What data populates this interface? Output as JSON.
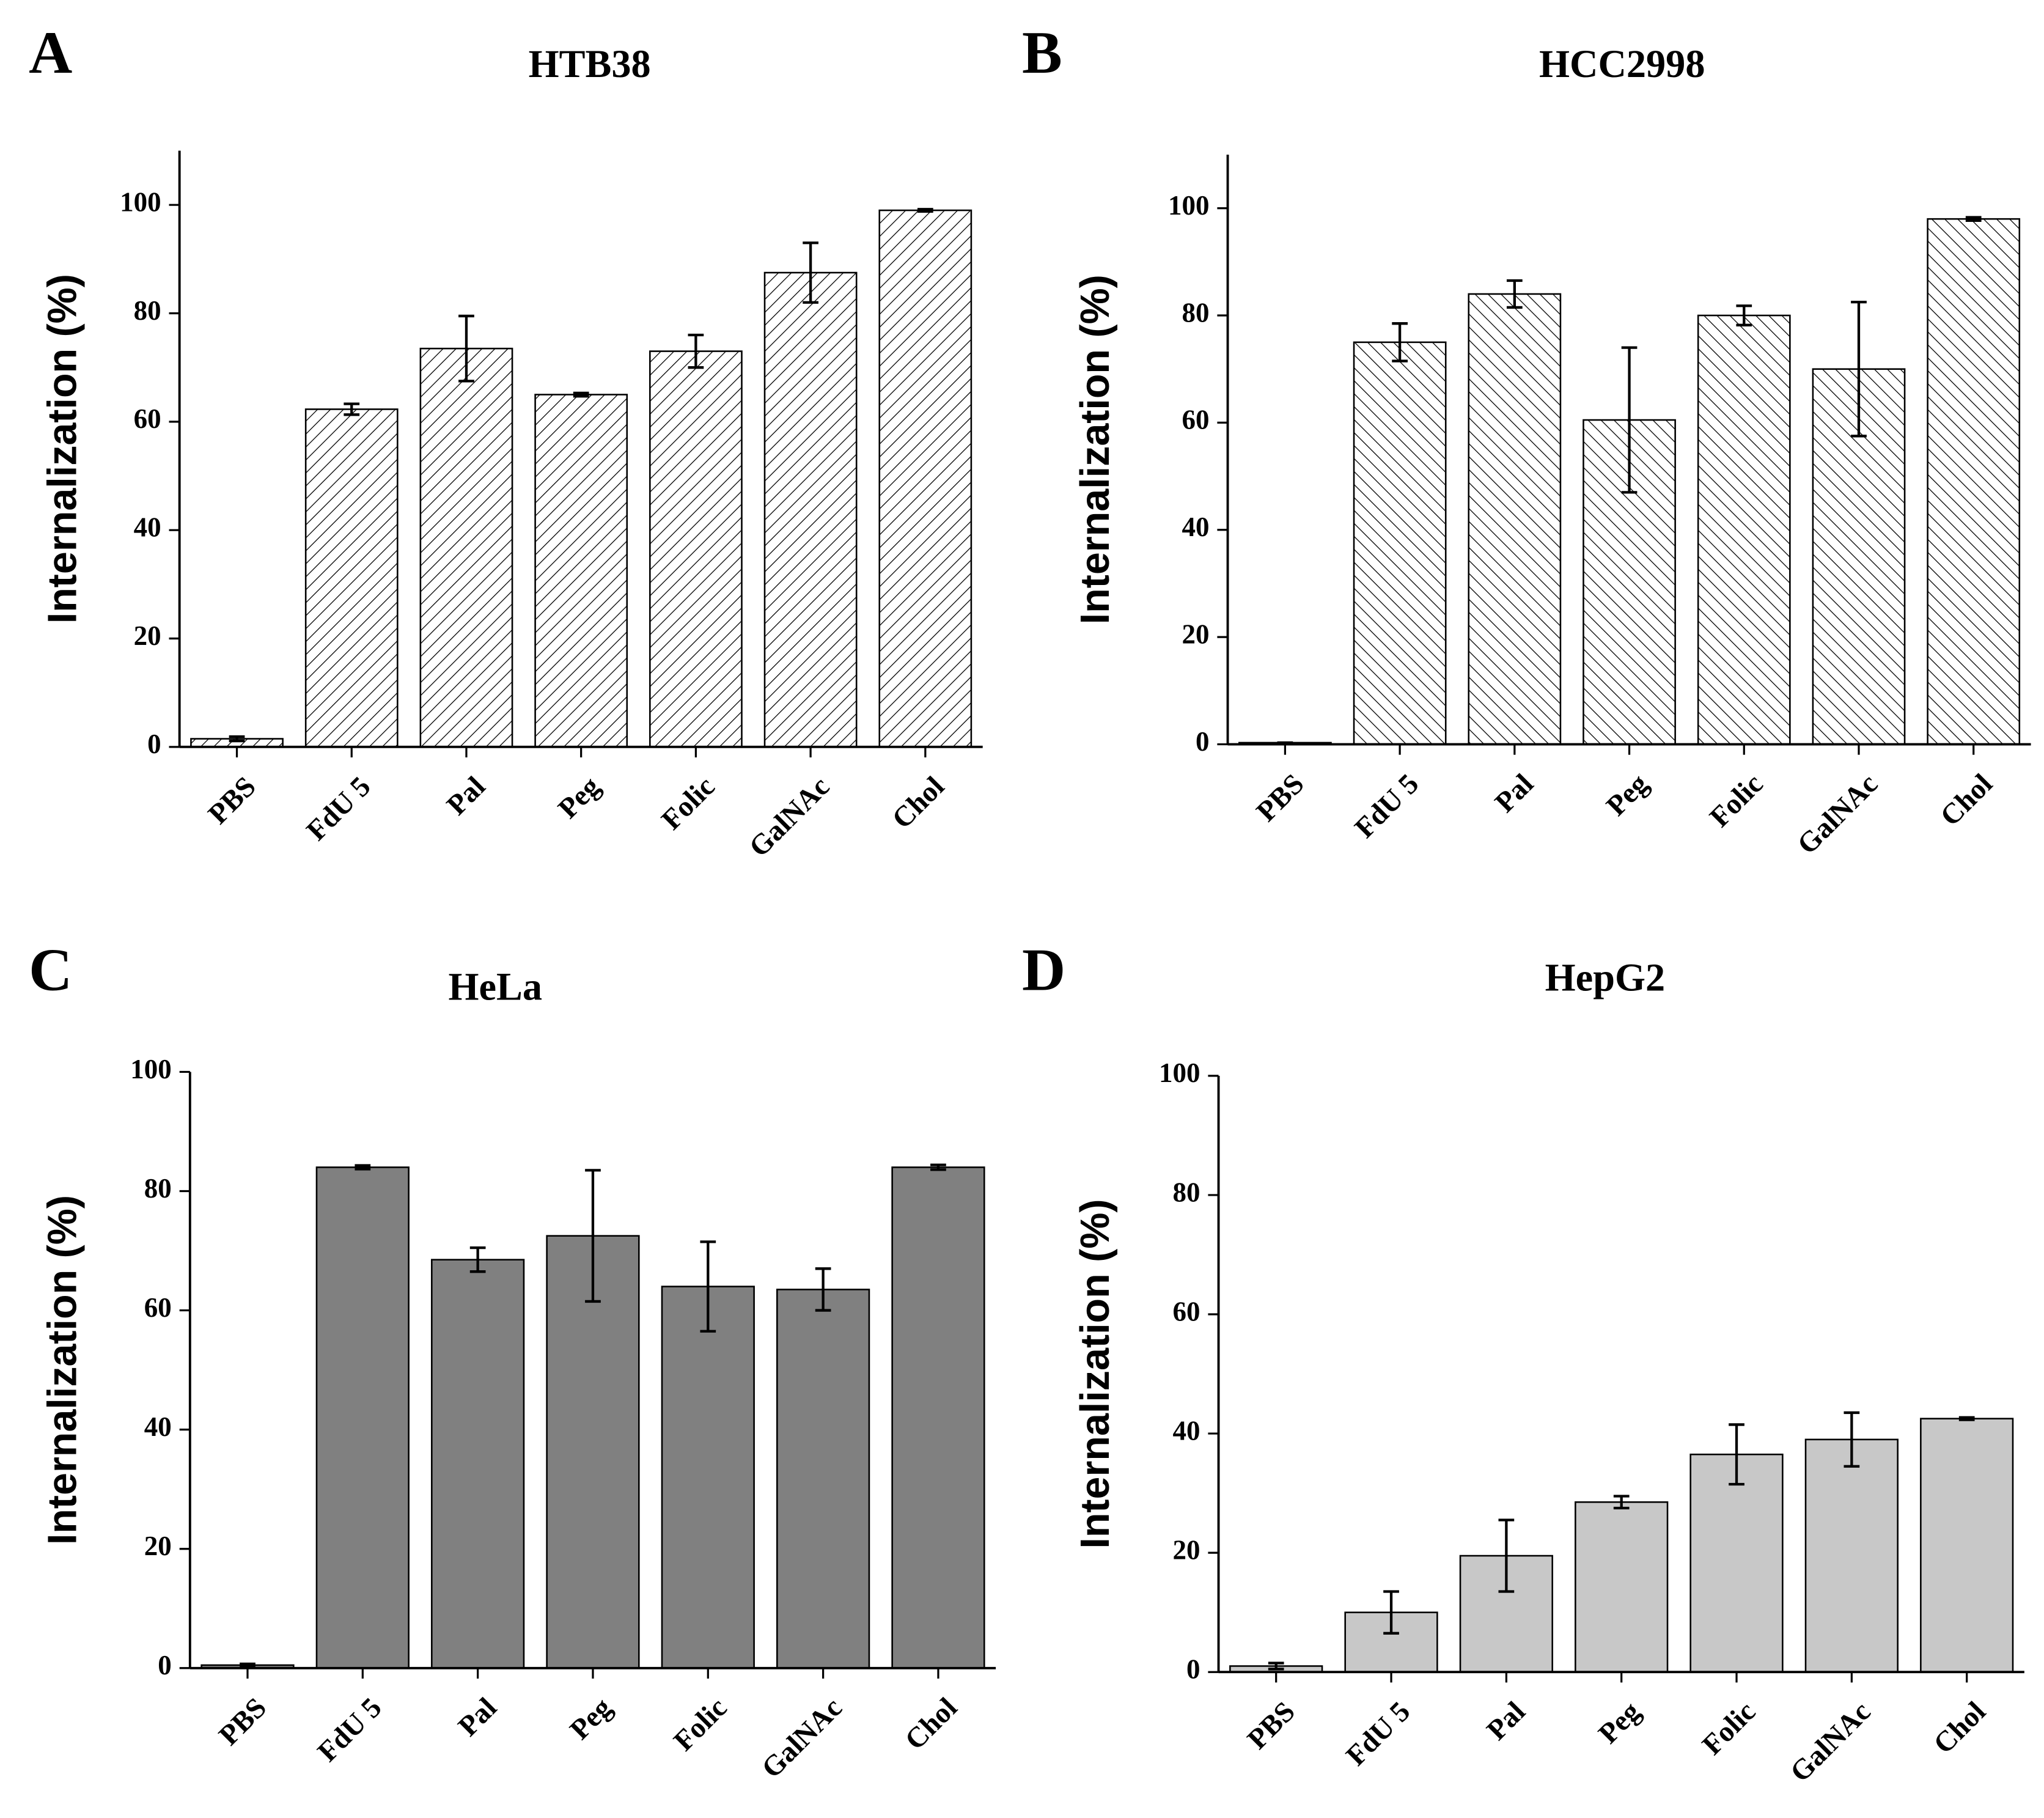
{
  "chart_data": [
    {
      "type": "bar",
      "panel_label": "A",
      "title": "HTB38",
      "ylabel": "Internalization (%)",
      "categories": [
        "PBS",
        "FdU 5",
        "Pal",
        "Peg",
        "Folic",
        "GalNAc",
        "Chol"
      ],
      "values": [
        1.5,
        62.3,
        73.5,
        65,
        73,
        87.5,
        99
      ],
      "errors": [
        0.4,
        1,
        6,
        0.3,
        3,
        5.5,
        0.2
      ],
      "ylim": [
        0,
        110
      ],
      "yticks": [
        0,
        20,
        40,
        60,
        80,
        100
      ],
      "color": "#ffffff",
      "hatch": "forward"
    },
    {
      "type": "bar",
      "panel_label": "B",
      "title": "HCC2998",
      "ylabel": "Internalization (%)",
      "categories": [
        "PBS",
        "FdU 5",
        "Pal",
        "Peg",
        "Folic",
        "GalNAc",
        "Chol"
      ],
      "values": [
        0.3,
        75,
        84,
        60.5,
        80,
        70,
        98
      ],
      "errors": [
        0,
        3.5,
        2.5,
        13.5,
        1.8,
        12.5,
        0.3
      ],
      "ylim": [
        0,
        110
      ],
      "yticks": [
        0,
        20,
        40,
        60,
        80,
        100
      ],
      "color": "#ffffff",
      "hatch": "backward"
    },
    {
      "type": "bar",
      "panel_label": "C",
      "title": "HeLa",
      "ylabel": "Internalization (%)",
      "categories": [
        "PBS",
        "FdU 5",
        "Pal",
        "Peg",
        "Folic",
        "GalNAc",
        "Chol"
      ],
      "values": [
        0.5,
        84,
        68.5,
        72.5,
        64,
        63.5,
        84
      ],
      "errors": [
        0.2,
        0.3,
        2,
        11,
        7.5,
        3.5,
        0.4
      ],
      "ylim": [
        0,
        100
      ],
      "yticks": [
        0,
        20,
        40,
        60,
        80,
        100
      ],
      "color": "#808080"
    },
    {
      "type": "bar",
      "panel_label": "D",
      "title": "HepG2",
      "ylabel": "Internalization (%)",
      "categories": [
        "PBS",
        "FdU 5",
        "Pal",
        "Peg",
        "Folic",
        "GalNAc",
        "Chol"
      ],
      "values": [
        1,
        10,
        19.5,
        28.5,
        36.5,
        39,
        42.5
      ],
      "errors": [
        0.5,
        3.5,
        6,
        1,
        5,
        4.5,
        0.2
      ],
      "ylim": [
        0,
        100
      ],
      "yticks": [
        0,
        20,
        40,
        60,
        80,
        100
      ],
      "color": "#c8c8c8"
    }
  ]
}
